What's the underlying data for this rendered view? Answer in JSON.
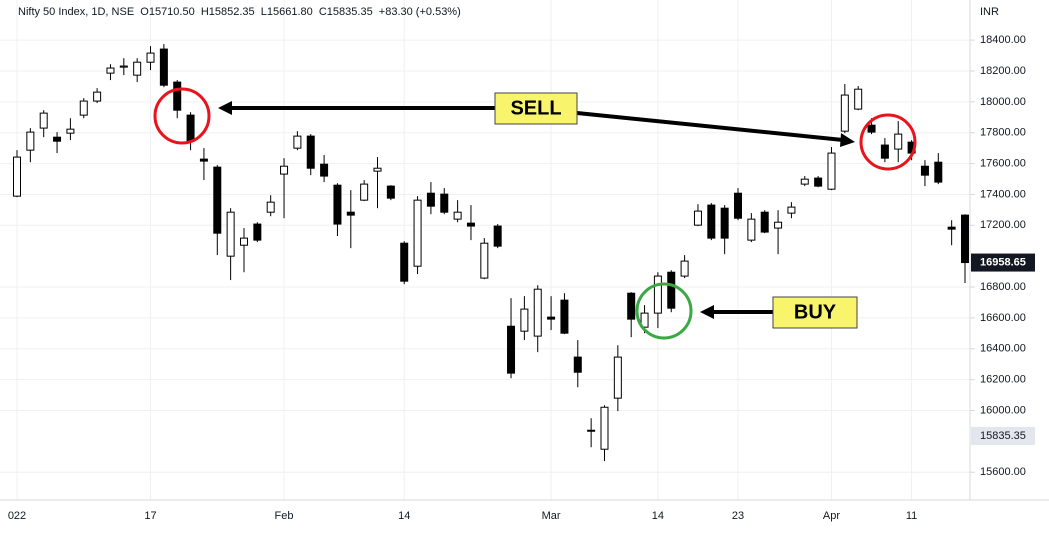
{
  "chart_data": {
    "type": "candlestick",
    "title": "Nifty 50 Index, 1D, NSE  O15710.50  H15852.35  L15661.80  C15835.35  +83.30 (+0.53%)",
    "currency": "INR",
    "categories": [
      "022",
      null,
      null,
      null,
      null,
      null,
      null,
      null,
      null,
      null,
      "17",
      null,
      null,
      null,
      null,
      null,
      null,
      null,
      null,
      null,
      "Feb",
      null,
      null,
      null,
      null,
      null,
      null,
      null,
      null,
      "14",
      null,
      null,
      null,
      null,
      null,
      null,
      null,
      null,
      null,
      null,
      "Mar",
      null,
      null,
      null,
      null,
      null,
      null,
      null,
      "14",
      null,
      null,
      null,
      null,
      null,
      "23",
      null,
      null,
      null,
      null,
      null,
      null,
      "Apr",
      null,
      null,
      null,
      null,
      null,
      "11",
      null,
      null,
      null,
      null
    ],
    "open": [
      17389,
      17687,
      17830,
      17771,
      17797,
      17914,
      18005,
      18186,
      18225,
      18173,
      18257,
      18342,
      18128,
      17914,
      17629,
      17577,
      17000,
      17071,
      17208,
      17285,
      17532,
      17700,
      17778,
      17596,
      17460,
      17285,
      17363,
      17551,
      17454,
      17084,
      16935,
      17408,
      17402,
      17240,
      17214,
      16858,
      17195,
      16546,
      16514,
      16482,
      16605,
      16715,
      16346,
      15872,
      15749,
      16080,
      16760,
      16540,
      16631,
      16896,
      16871,
      17201,
      17331,
      17311,
      17408,
      17104,
      17285,
      17182,
      17279,
      17467,
      17506,
      17434,
      17810,
      17953,
      17849,
      17720,
      17694,
      17739,
      17583,
      17609,
      17188,
      17266
    ],
    "high": [
      17687,
      17830,
      17946,
      17804,
      17894,
      18024,
      18089,
      18244,
      18283,
      18283,
      18361,
      18374,
      18141,
      17933,
      17700,
      17590,
      17311,
      17182,
      17220,
      17395,
      17635,
      17810,
      17791,
      17655,
      17473,
      17428,
      17493,
      17642,
      17460,
      17097,
      17389,
      17480,
      17441,
      17363,
      17331,
      17117,
      17208,
      16728,
      16741,
      16812,
      16741,
      16760,
      16456,
      15950,
      16034,
      16423,
      16767,
      16683,
      16896,
      16909,
      17007,
      17337,
      17344,
      17331,
      17441,
      17279,
      17298,
      17298,
      17350,
      17519,
      17519,
      17707,
      18115,
      18102,
      17894,
      17765,
      17875,
      17752,
      17622,
      17668,
      17233,
      17272
    ],
    "low": [
      17383,
      17609,
      17771,
      17668,
      17752,
      17894,
      17992,
      18141,
      18173,
      18128,
      18206,
      18095,
      17894,
      17687,
      17493,
      17007,
      16845,
      16896,
      17091,
      17259,
      17246,
      17687,
      17525,
      17480,
      17130,
      17052,
      17357,
      17311,
      17363,
      16819,
      16884,
      17272,
      17272,
      17220,
      17104,
      16851,
      17052,
      16209,
      16456,
      16378,
      16521,
      16495,
      16151,
      15762,
      15672,
      15996,
      16475,
      16501,
      16534,
      16637,
      16858,
      17195,
      17104,
      17013,
      17233,
      17091,
      17149,
      17013,
      17246,
      17454,
      17447,
      17428,
      17797,
      17946,
      17791,
      17609,
      17609,
      17622,
      17454,
      17467,
      17071,
      16826
    ],
    "close": [
      17642,
      17804,
      17927,
      17745,
      17823,
      18005,
      18063,
      18219,
      18232,
      18257,
      18316,
      18108,
      17946,
      17745,
      17616,
      17149,
      17285,
      17117,
      17104,
      17350,
      17583,
      17778,
      17570,
      17519,
      17208,
      17266,
      17467,
      17570,
      17376,
      16838,
      17363,
      17324,
      17285,
      17285,
      17195,
      17084,
      17065,
      16242,
      16657,
      16786,
      16592,
      16501,
      16248,
      15866,
      16021,
      16346,
      16592,
      16631,
      16871,
      16663,
      16968,
      17292,
      17117,
      17117,
      17246,
      17240,
      17156,
      17220,
      17318,
      17499,
      17454,
      17668,
      18044,
      18082,
      17804,
      17635,
      17791,
      17668,
      17525,
      17480,
      17175,
      16958.65
    ],
    "up_color": "#ffffff",
    "down_color": "#000000",
    "wick_color": "#000000",
    "ylim": [
      15420,
      18660
    ],
    "yticks": [
      {
        "value": 15600,
        "label": "15600.00"
      },
      {
        "value": 16000,
        "label": "16000.00"
      },
      {
        "value": 16200,
        "label": "16200.00"
      },
      {
        "value": 16400,
        "label": "16400.00"
      },
      {
        "value": 16600,
        "label": "16600.00"
      },
      {
        "value": 16800,
        "label": "16800.00"
      },
      {
        "value": 17200,
        "label": "17200.00"
      },
      {
        "value": 17400,
        "label": "17400.00"
      },
      {
        "value": 17600,
        "label": "17600.00"
      },
      {
        "value": 17800,
        "label": "17800.00"
      },
      {
        "value": 18000,
        "label": "18000.00"
      },
      {
        "value": 18200,
        "label": "18200.00"
      },
      {
        "value": 18400,
        "label": "18400.00"
      }
    ],
    "price_labels": [
      {
        "value": 16958.65,
        "style": "last"
      },
      {
        "value": 15835.35,
        "style": "crosshair"
      }
    ],
    "grid": true,
    "annotations": [
      {
        "text": "SELL"
      },
      {
        "text": "BUY"
      }
    ]
  }
}
